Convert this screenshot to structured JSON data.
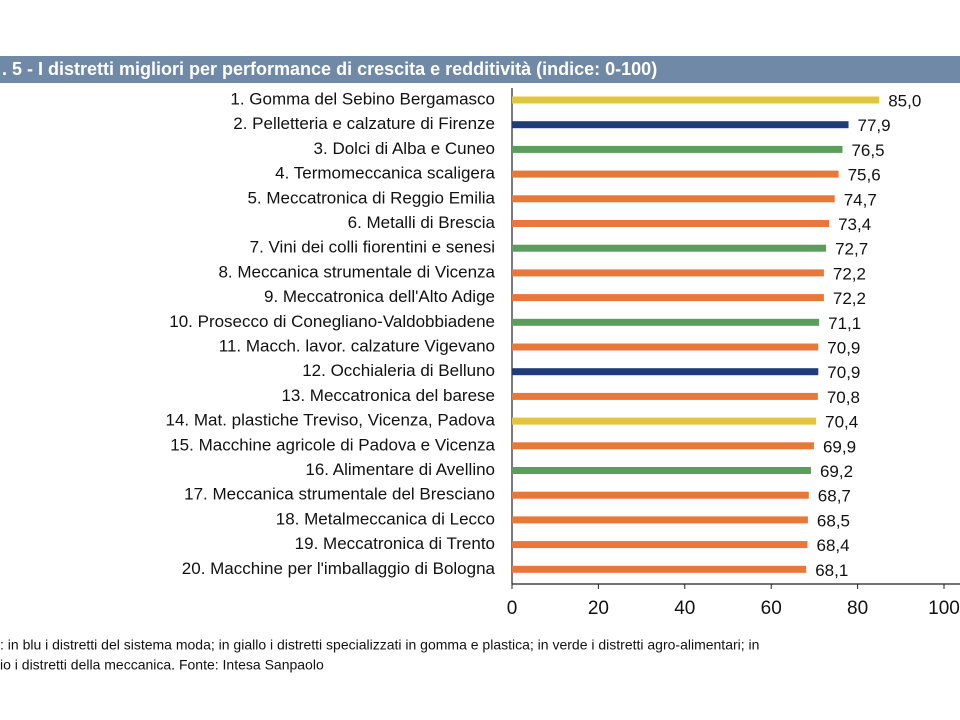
{
  "chart_data": {
    "type": "barh",
    "title": ". 5 - I distretti migliori per performance di crescita e redditività (indice: 0-100)",
    "categories": [
      "1. Gomma del Sebino Bergamasco",
      "2. Pelletteria e calzature di Firenze",
      "3. Dolci di Alba e Cuneo",
      "4. Termomeccanica scaligera",
      "5. Meccatronica di Reggio Emilia",
      "6. Metalli di Brescia",
      "7. Vini dei colli fiorentini e senesi",
      "8. Meccanica strumentale di Vicenza",
      "9. Meccatronica dell'Alto Adige",
      "10. Prosecco di Conegliano-Valdobbiadene",
      "11. Macch. lavor. calzature Vigevano",
      "12. Occhialeria di Belluno",
      "13. Meccatronica del barese",
      "14. Mat. plastiche Treviso, Vicenza, Padova",
      "15. Macchine agricole di Padova e Vicenza",
      "16. Alimentare di Avellino",
      "17. Meccanica strumentale del Bresciano",
      "18. Metalmeccanica di Lecco",
      "19. Meccatronica di Trento",
      "20. Macchine per l'imballaggio di Bologna"
    ],
    "values": [
      85.0,
      77.9,
      76.5,
      75.6,
      74.7,
      73.4,
      72.7,
      72.2,
      72.2,
      71.1,
      70.9,
      70.9,
      70.8,
      70.4,
      69.9,
      69.2,
      68.7,
      68.5,
      68.4,
      68.1
    ],
    "value_labels": [
      "85,0",
      "77,9",
      "76,5",
      "75,6",
      "74,7",
      "73,4",
      "72,7",
      "72,2",
      "72,2",
      "71,1",
      "70,9",
      "70,9",
      "70,8",
      "70,4",
      "69,9",
      "69,2",
      "68,7",
      "68,5",
      "68,4",
      "68,1"
    ],
    "colors": [
      "#e3c43e",
      "#1f3c78",
      "#5b9d5b",
      "#e8773a",
      "#e8773a",
      "#e8773a",
      "#5b9d5b",
      "#e8773a",
      "#e8773a",
      "#5b9d5b",
      "#e8773a",
      "#1f3c78",
      "#e8773a",
      "#e3c43e",
      "#e8773a",
      "#5b9d5b",
      "#e8773a",
      "#e8773a",
      "#e8773a",
      "#e8773a"
    ],
    "xlim": [
      0,
      100
    ],
    "xticks": [
      0,
      20,
      40,
      60,
      80,
      100
    ],
    "notes": [
      ": in blu i distretti del sistema moda; in giallo i distretti specializzati in gomma e plastica; in verde i distretti agro-alimentari; in",
      "io i distretti della meccanica. Fonte: Intesa Sanpaolo"
    ]
  }
}
